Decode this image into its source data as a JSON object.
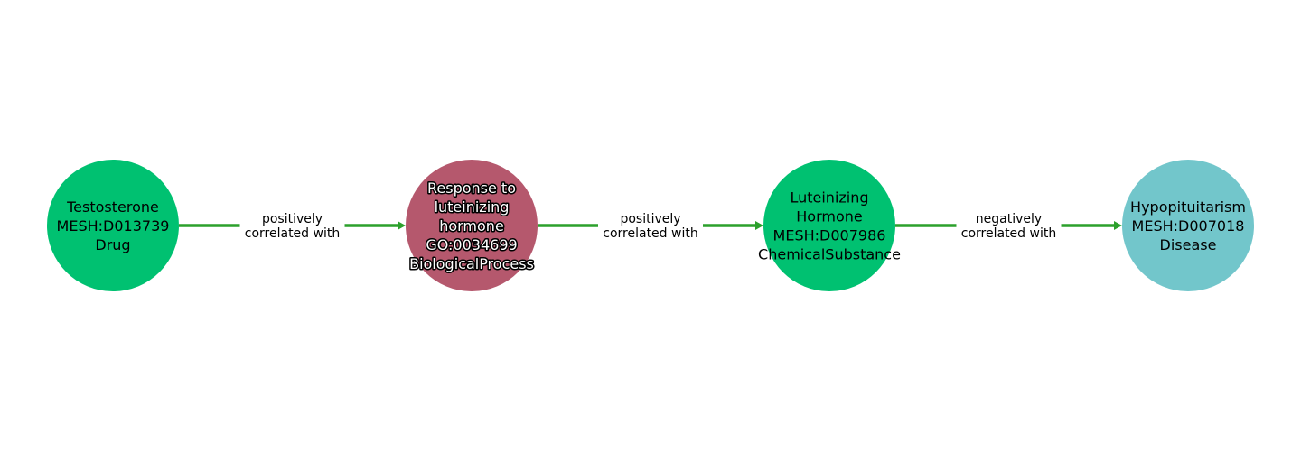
{
  "colors": {
    "edge": "#2ca02c",
    "background": "#ffffff"
  },
  "nodes": [
    {
      "name": "Testosterone",
      "id": "MESH:D013739",
      "category": "Drug",
      "label_lines": [
        "Testosterone",
        "MESH:D013739",
        "Drug"
      ],
      "color": "#00c171",
      "text_style": "plain"
    },
    {
      "name": "Response to luteinizing hormone",
      "id": "GO:0034699",
      "category": "BiologicalProcess",
      "label_lines": [
        "Response to",
        "luteinizing",
        "hormone",
        "GO:0034699",
        "BiologicalProcess"
      ],
      "color": "#b5586d",
      "text_style": "halo"
    },
    {
      "name": "Luteinizing Hormone",
      "id": "MESH:D007986",
      "category": "ChemicalSubstance",
      "label_lines": [
        "Luteinizing",
        "Hormone",
        "MESH:D007986",
        "ChemicalSubstance"
      ],
      "color": "#00c171",
      "text_style": "plain"
    },
    {
      "name": "Hypopituitarism",
      "id": "MESH:D007018",
      "category": "Disease",
      "label_lines": [
        "Hypopituitarism",
        "MESH:D007018",
        "Disease"
      ],
      "color": "#72c6cb",
      "text_style": "plain"
    }
  ],
  "edges": [
    {
      "source": 0,
      "target": 1,
      "label_lines": [
        "positively",
        "correlated with"
      ]
    },
    {
      "source": 1,
      "target": 2,
      "label_lines": [
        "positively",
        "correlated with"
      ]
    },
    {
      "source": 2,
      "target": 3,
      "label_lines": [
        "negatively",
        "correlated with"
      ]
    }
  ]
}
